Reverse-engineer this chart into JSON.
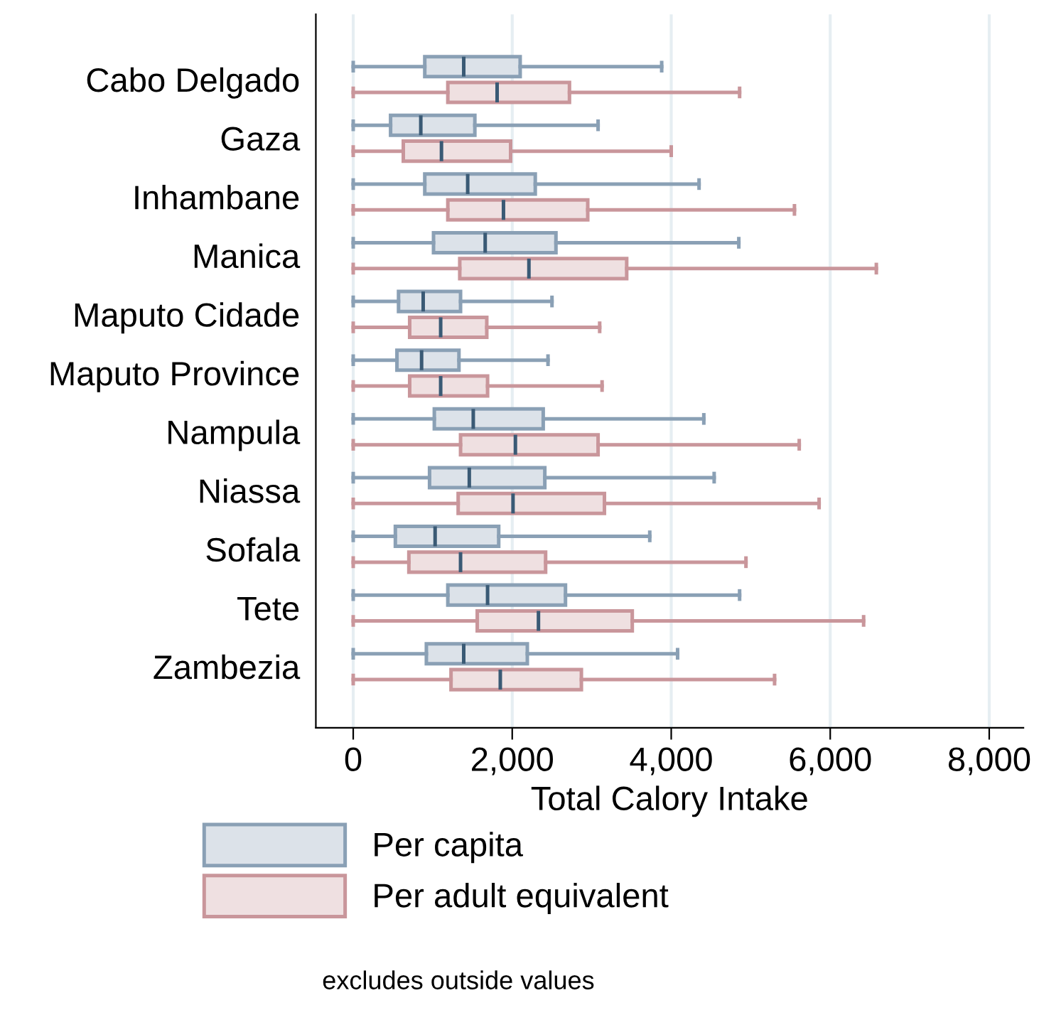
{
  "chart_data": {
    "type": "box",
    "orientation": "horizontal",
    "xlabel": "Total Calory Intake",
    "categories": [
      "Cabo Delgado",
      "Gaza",
      "Inhambane",
      "Manica",
      "Maputo Cidade",
      "Maputo Province",
      "Nampula",
      "Niassa",
      "Sofala",
      "Tete",
      "Zambezia"
    ],
    "series": [
      {
        "name": "Per capita",
        "color": "#8aa0b5",
        "boxes": [
          {
            "low": 0,
            "q1": 900,
            "median": 1390,
            "q3": 2100,
            "high": 3880
          },
          {
            "low": 0,
            "q1": 470,
            "median": 850,
            "q3": 1530,
            "high": 3080
          },
          {
            "low": 0,
            "q1": 900,
            "median": 1440,
            "q3": 2290,
            "high": 4350
          },
          {
            "low": 0,
            "q1": 1010,
            "median": 1660,
            "q3": 2550,
            "high": 4850
          },
          {
            "low": 0,
            "q1": 570,
            "median": 880,
            "q3": 1350,
            "high": 2500
          },
          {
            "low": 0,
            "q1": 550,
            "median": 860,
            "q3": 1330,
            "high": 2450
          },
          {
            "low": 0,
            "q1": 1020,
            "median": 1510,
            "q3": 2390,
            "high": 4410
          },
          {
            "low": 0,
            "q1": 960,
            "median": 1460,
            "q3": 2410,
            "high": 4540
          },
          {
            "low": 0,
            "q1": 530,
            "median": 1030,
            "q3": 1830,
            "high": 3730
          },
          {
            "low": 0,
            "q1": 1190,
            "median": 1690,
            "q3": 2670,
            "high": 4860
          },
          {
            "low": 0,
            "q1": 920,
            "median": 1390,
            "q3": 2190,
            "high": 4080
          }
        ]
      },
      {
        "name": "Per adult equivalent",
        "color": "#c9969b",
        "boxes": [
          {
            "low": 0,
            "q1": 1190,
            "median": 1810,
            "q3": 2720,
            "high": 4860
          },
          {
            "low": 0,
            "q1": 630,
            "median": 1110,
            "q3": 1980,
            "high": 4000
          },
          {
            "low": 0,
            "q1": 1190,
            "median": 1890,
            "q3": 2950,
            "high": 5550
          },
          {
            "low": 0,
            "q1": 1340,
            "median": 2210,
            "q3": 3440,
            "high": 6580
          },
          {
            "low": 0,
            "q1": 710,
            "median": 1100,
            "q3": 1680,
            "high": 3100
          },
          {
            "low": 0,
            "q1": 710,
            "median": 1100,
            "q3": 1690,
            "high": 3130
          },
          {
            "low": 0,
            "q1": 1350,
            "median": 2040,
            "q3": 3080,
            "high": 5610
          },
          {
            "low": 0,
            "q1": 1320,
            "median": 2010,
            "q3": 3160,
            "high": 5860
          },
          {
            "low": 0,
            "q1": 700,
            "median": 1350,
            "q3": 2420,
            "high": 4940
          },
          {
            "low": 0,
            "q1": 1560,
            "median": 2330,
            "q3": 3510,
            "high": 6420
          },
          {
            "low": 0,
            "q1": 1230,
            "median": 1850,
            "q3": 2870,
            "high": 5300
          }
        ]
      }
    ],
    "xlim": [
      -470,
      8430
    ],
    "xticks": [
      {
        "value": 0,
        "label": "0"
      },
      {
        "value": 2000,
        "label": "2,000"
      },
      {
        "value": 4000,
        "label": "4,000"
      },
      {
        "value": 6000,
        "label": "6,000"
      },
      {
        "value": 8000,
        "label": "8,000"
      }
    ],
    "grid": "x",
    "legend": "bottom",
    "annotations": [
      "excludes outside values"
    ]
  }
}
